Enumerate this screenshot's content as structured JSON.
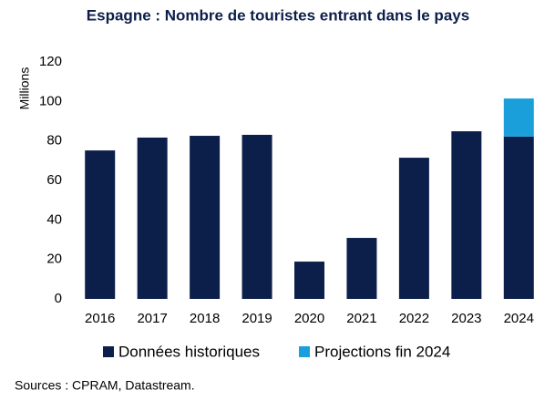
{
  "chart_data": {
    "type": "stacked_bar",
    "title": "Espagne : Nombre de touristes entrant dans le pays",
    "y_label": "Millions",
    "categories": [
      "2016",
      "2017",
      "2018",
      "2019",
      "2020",
      "2021",
      "2022",
      "2023",
      "2024"
    ],
    "series": [
      {
        "name": "Données historiques",
        "color": "#0c1f4a",
        "values": [
          75.2,
          81.7,
          82.6,
          83.1,
          18.9,
          30.9,
          71.5,
          84.9,
          82.2
        ]
      },
      {
        "name": "Projections fin 2024",
        "color": "#1a9fdb",
        "values": [
          null,
          null,
          null,
          null,
          null,
          null,
          null,
          null,
          19.3
        ]
      }
    ],
    "ylim": [
      0,
      120
    ],
    "yticks": [
      0,
      20,
      40,
      60,
      80,
      100,
      120
    ],
    "grid": false,
    "source": "Sources : CPRAM, Datastream."
  }
}
